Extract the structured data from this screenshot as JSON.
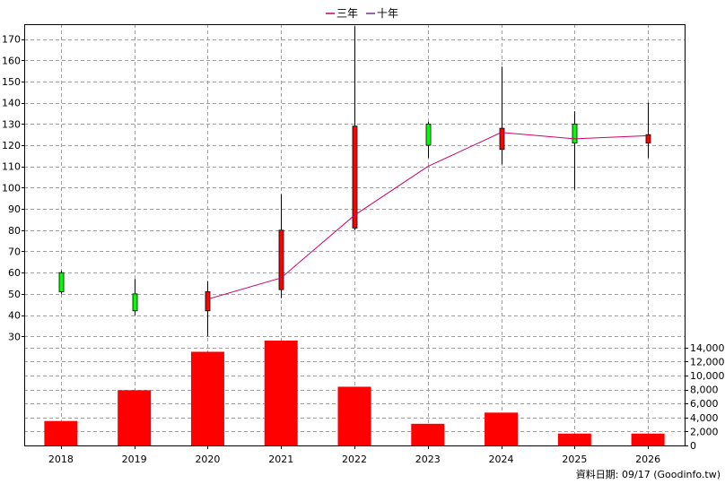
{
  "chart_data": {
    "type": "candlestick+line+bar",
    "legend": [
      {
        "label": "三年",
        "color": "#cc0066"
      },
      {
        "label": "十年",
        "color": "#7030a0"
      }
    ],
    "legend_placement": "top-center",
    "grid": true,
    "categories": [
      "2018",
      "2019",
      "2020",
      "2021",
      "2022",
      "2023",
      "2024",
      "2025",
      "2026"
    ],
    "price_axis": {
      "ylim": [
        28,
        177
      ],
      "ticks": [
        "30",
        "40",
        "50",
        "60",
        "70",
        "80",
        "90",
        "100",
        "110",
        "120",
        "130",
        "140",
        "150",
        "160",
        "170"
      ]
    },
    "candles": [
      {
        "year": "2018",
        "open": 51,
        "close": 60,
        "high": 61,
        "low": 50
      },
      {
        "year": "2019",
        "open": 42,
        "close": 50,
        "high": 57,
        "low": 40
      },
      {
        "year": "2020",
        "open": 51,
        "close": 42,
        "high": 56,
        "low": 30
      },
      {
        "year": "2021",
        "open": 80,
        "close": 52,
        "high": 97,
        "low": 48
      },
      {
        "year": "2022",
        "open": 129,
        "close": 81,
        "high": 176,
        "low": 80
      },
      {
        "year": "2023",
        "open": 120,
        "close": 130,
        "high": 131,
        "low": 114
      },
      {
        "year": "2024",
        "open": 128,
        "close": 118,
        "high": 157,
        "low": 111
      },
      {
        "year": "2025",
        "open": 121,
        "close": 130,
        "high": 136,
        "low": 99
      },
      {
        "year": "2026",
        "open": 125,
        "close": 121,
        "high": 140,
        "low": 114
      }
    ],
    "series": [
      {
        "name": "三年",
        "color": "#cc0066",
        "points": [
          [
            "2020",
            47.5
          ],
          [
            "2021",
            57.5
          ],
          [
            "2022",
            87
          ],
          [
            "2023",
            110
          ],
          [
            "2024",
            126
          ],
          [
            "2025",
            123
          ],
          [
            "2026",
            124.5
          ]
        ]
      }
    ],
    "volume_axis": {
      "ylim": [
        0,
        15000
      ],
      "ticks": [
        "0",
        "2,000",
        "4,000",
        "6,000",
        "8,000",
        "10,000",
        "12,000",
        "14,000"
      ]
    },
    "volume": [
      3500,
      7900,
      13400,
      15000,
      8400,
      3100,
      4700,
      1700,
      1700
    ],
    "colors": {
      "up": "#00ff00",
      "down": "#ff0000",
      "bar": "#ff0000",
      "wick": "#000000"
    },
    "footer": "資料日期: 09/17  (Goodinfo.tw)"
  }
}
